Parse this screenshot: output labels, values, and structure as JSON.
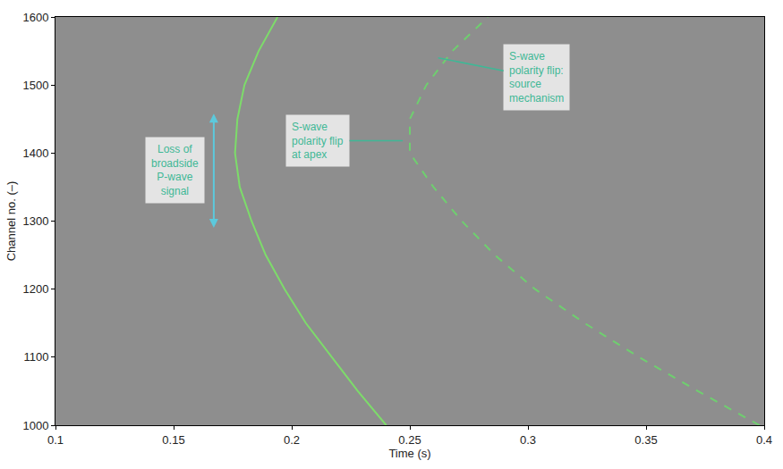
{
  "chart_data": {
    "type": "line",
    "x_label": "Time (s)",
    "y_label": "Channel no. (–)",
    "xlim": [
      0.1,
      0.4
    ],
    "xticks": [
      0.1,
      0.15,
      0.2,
      0.25,
      0.3,
      0.35,
      0.4
    ],
    "ylim": [
      1000,
      1600
    ],
    "yticks": [
      1000,
      1100,
      1200,
      1300,
      1400,
      1500,
      1600
    ],
    "grid": false,
    "series": [
      {
        "type": "line",
        "color": "#7ddc6a",
        "line_style": "solid",
        "x": [
          0.24,
          0.228,
          0.217,
          0.206,
          0.197,
          0.189,
          0.183,
          0.178,
          0.176,
          0.177,
          0.18,
          0.186,
          0.194
        ],
        "values": [
          1000,
          1050,
          1100,
          1150,
          1200,
          1250,
          1300,
          1350,
          1400,
          1450,
          1500,
          1550,
          1600
        ]
      },
      {
        "type": "line",
        "color": "#6fcf6f",
        "line_style": "dashed",
        "x": [
          0.398,
          0.372,
          0.347,
          0.324,
          0.303,
          0.286,
          0.272,
          0.26,
          0.25,
          0.25,
          0.257,
          0.268,
          0.283
        ],
        "values": [
          1000,
          1050,
          1100,
          1150,
          1200,
          1250,
          1300,
          1350,
          1400,
          1450,
          1500,
          1550,
          1600
        ]
      }
    ],
    "annotations": [
      {
        "lines": [
          "Loss of",
          "broadside",
          "P-wave",
          "signal"
        ],
        "x": 0.167,
        "y": [
          1290,
          1460
        ]
      },
      {
        "lines": [
          "S-wave",
          "polarity flip",
          "at apex"
        ],
        "x": 0.247,
        "y": 1418
      },
      {
        "lines": [
          "S-wave",
          "polarity flip:",
          "source",
          "mechanism"
        ],
        "x": 0.262,
        "y": 1540
      }
    ]
  }
}
